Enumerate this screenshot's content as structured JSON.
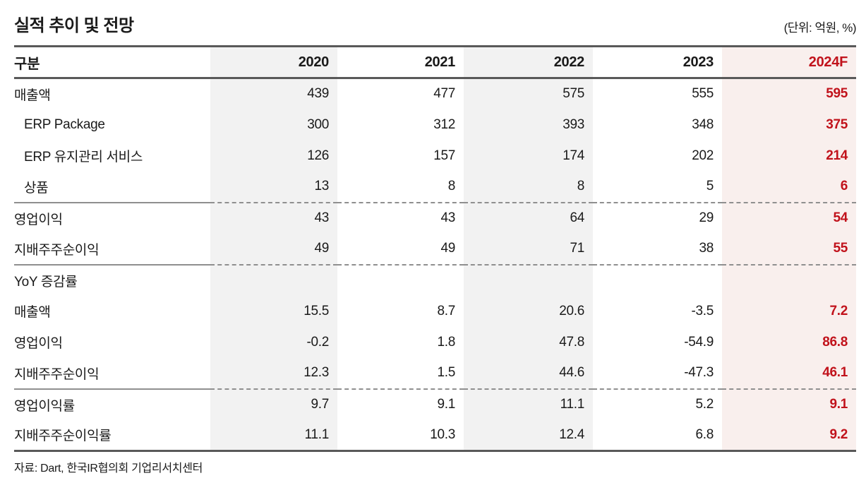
{
  "title": "실적 추이 및 전망",
  "unit_note": "(단위: 억원, %)",
  "source": "자료: Dart, 한국IR협의회 기업리서치센터",
  "colors": {
    "text": "#1a1a1a",
    "forecast_red": "#c1121b",
    "stripe_gray": "#f2f2f2",
    "stripe_pink": "#f9efed",
    "heavy_rule": "#595959",
    "separator_rule": "#8f8f8f"
  },
  "table": {
    "header": {
      "label": "구분",
      "col_2020": "2020",
      "col_2021": "2021",
      "col_2022": "2022",
      "col_2023": "2023",
      "col_2024f": "2024F"
    },
    "rows": [
      {
        "label": "매출액",
        "indent": false,
        "values": [
          "439",
          "477",
          "575",
          "555",
          "595"
        ]
      },
      {
        "label": "ERP Package",
        "indent": true,
        "values": [
          "300",
          "312",
          "393",
          "348",
          "375"
        ]
      },
      {
        "label": "ERP 유지관리 서비스",
        "indent": true,
        "values": [
          "126",
          "157",
          "174",
          "202",
          "214"
        ]
      },
      {
        "label": "상품",
        "indent": true,
        "values": [
          "13",
          "8",
          "8",
          "5",
          "6"
        ]
      },
      {
        "label": "영업이익",
        "indent": false,
        "values": [
          "43",
          "43",
          "64",
          "29",
          "54"
        ]
      },
      {
        "label": "지배주주순이익",
        "indent": false,
        "values": [
          "49",
          "49",
          "71",
          "38",
          "55"
        ]
      },
      {
        "label": "YoY 증감률",
        "indent": false,
        "values": [
          "",
          "",
          "",
          "",
          ""
        ]
      },
      {
        "label": "매출액",
        "indent": false,
        "values": [
          "15.5",
          "8.7",
          "20.6",
          "-3.5",
          "7.2"
        ]
      },
      {
        "label": "영업이익",
        "indent": false,
        "values": [
          "-0.2",
          "1.8",
          "47.8",
          "-54.9",
          "86.8"
        ]
      },
      {
        "label": "지배주주순이익",
        "indent": false,
        "values": [
          "12.3",
          "1.5",
          "44.6",
          "-47.3",
          "46.1"
        ]
      },
      {
        "label": "영업이익률",
        "indent": false,
        "values": [
          "9.7",
          "9.1",
          "11.1",
          "5.2",
          "9.1"
        ]
      },
      {
        "label": "지배주주순이익률",
        "indent": false,
        "values": [
          "11.1",
          "10.3",
          "12.4",
          "6.8",
          "9.2"
        ]
      }
    ]
  }
}
